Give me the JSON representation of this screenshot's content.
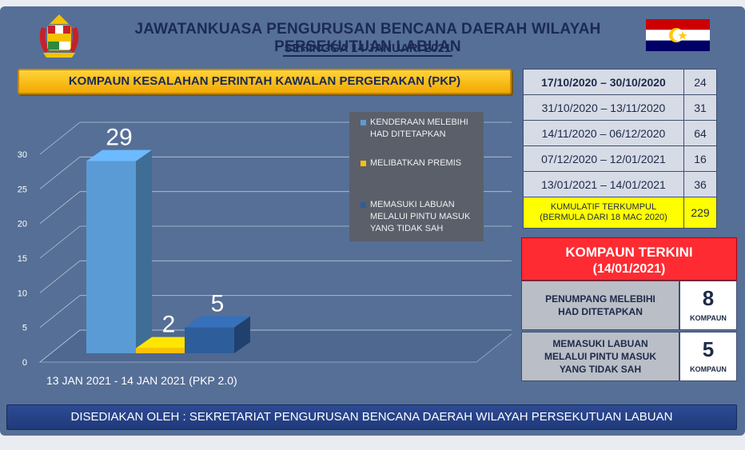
{
  "header": {
    "title": "JAWATANKUASA PENGURUSAN BENCANA DAERAH WILAYAH PERSEKUTUAN  LABUAN",
    "subtitle": "SEHINGGA 14 JANUARI 2021",
    "crest_icon": "malaysia-coat-of-arms-icon",
    "flag_icon": "labuan-flag-icon"
  },
  "banner": {
    "text": "KOMPAUN KESALAHAN PERINTAH KAWALAN PERGERAKAN (PKP)"
  },
  "chart_data": {
    "type": "bar",
    "categories": [
      "13 JAN 2021 - 14 JAN 2021 (PKP 2.0)"
    ],
    "series": [
      {
        "name": "KENDERAAN MELEBIHI HAD DITETAPKAN",
        "values": [
          29
        ],
        "color": "#5b9bd5"
      },
      {
        "name": "MELIBATKAN PREMIS",
        "values": [
          2
        ],
        "color": "#ffc000"
      },
      {
        "name": "MEMASUKI LABUAN MELALUI PINTU MASUK YANG TIDAK SAH",
        "values": [
          5
        ],
        "color": "#2e5d9c"
      }
    ],
    "ylim": [
      0,
      30
    ],
    "yticks": [
      "0",
      "5",
      "10",
      "15",
      "20",
      "25",
      "30"
    ],
    "data_labels": [
      "29",
      "2",
      "5"
    ],
    "grid": true,
    "legend_position": "right",
    "style": "3d"
  },
  "legend": [
    {
      "line1": "KENDERAAN MELEBIHI",
      "line2": "HAD DITETAPKAN",
      "color": "#5b9bd5"
    },
    {
      "line1": "MELIBATKAN PREMIS",
      "line2": "",
      "color": "#ffc000"
    },
    {
      "line1": "MEMASUKI LABUAN",
      "line2": "MELALUI PINTU MASUK",
      "line3": "YANG TIDAK SAH",
      "color": "#2e5d9c"
    }
  ],
  "periods": [
    {
      "period": "17/10/2020 – 30/10/2020",
      "value": "24"
    },
    {
      "period": "31/10/2020 – 13/11/2020",
      "value": "31"
    },
    {
      "period": "14/11/2020 – 06/12/2020",
      "value": "64"
    },
    {
      "period": "07/12/2020 – 12/01/2021",
      "value": "16"
    },
    {
      "period": "13/01/2021 – 14/01/2021",
      "value": "36"
    }
  ],
  "cumulative": {
    "line1": "KUMULATIF TERKUMPUL",
    "line2": "(BERMULA DARI 18 MAC 2020)",
    "value": "229"
  },
  "latest": {
    "title": "KOMPAUN TERKINI",
    "date": "(14/01/2021)",
    "rows": [
      {
        "line1": "PENUMPANG MELEBIHI",
        "line2": "HAD DITETAPKAN",
        "line3": "",
        "value": "8",
        "unit": "KOMPAUN"
      },
      {
        "line1": "MEMASUKI LABUAN",
        "line2": "MELALUI PINTU MASUK",
        "line3": "YANG TIDAK SAH",
        "value": "5",
        "unit": "KOMPAUN"
      }
    ]
  },
  "footer": {
    "text": "DISEDIAKAN OLEH : SEKRETARIAT PENGURUSAN BENCANA DAERAH WILAYAH PERSEKUTUAN LABUAN"
  }
}
